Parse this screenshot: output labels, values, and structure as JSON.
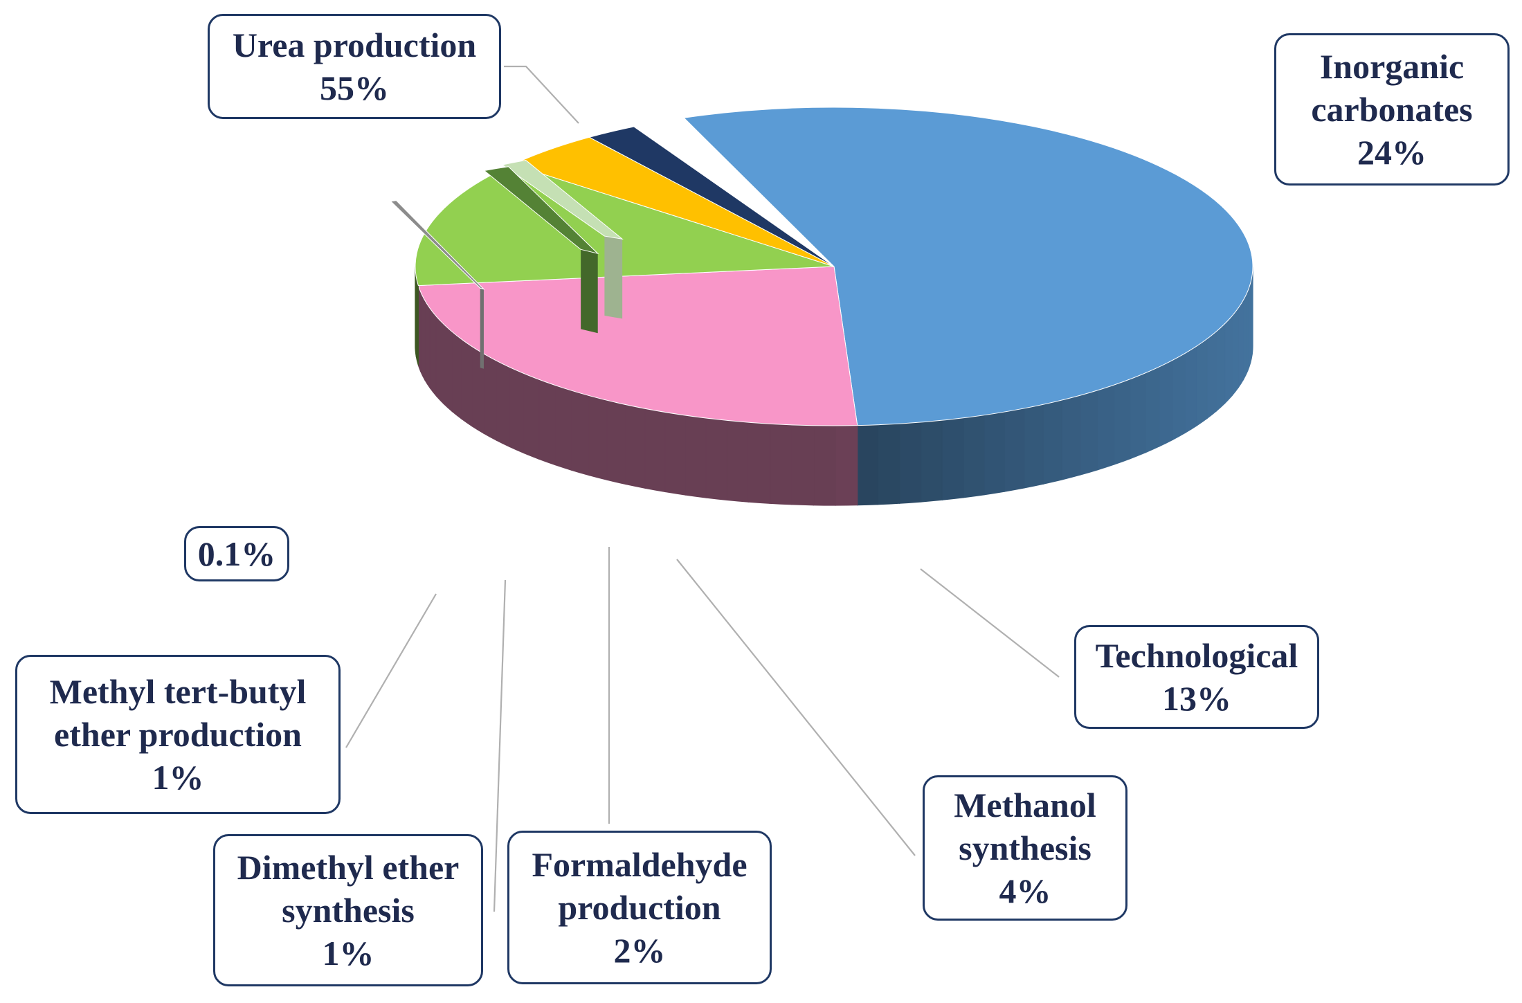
{
  "chart_data": {
    "type": "pie",
    "style": "3d-exploded",
    "slices": [
      {
        "label_lines": [
          "Urea production"
        ],
        "pct_text": "55%",
        "value": 55,
        "color": "#5b9bd5"
      },
      {
        "label_lines": [
          "Inorganic",
          "carbonates"
        ],
        "pct_text": "24%",
        "value": 24,
        "color": "#f896c8"
      },
      {
        "label_lines": [
          "Technological"
        ],
        "pct_text": "13%",
        "value": 13,
        "color": "#92d050"
      },
      {
        "label_lines": [
          "Methanol",
          "synthesis"
        ],
        "pct_text": "4%",
        "value": 4,
        "color": "#ffc000"
      },
      {
        "label_lines": [
          "Formaldehyde",
          "production"
        ],
        "pct_text": "2%",
        "value": 2,
        "color": "#1f3864"
      },
      {
        "label_lines": [
          "Dimethyl ether",
          "synthesis"
        ],
        "pct_text": "1%",
        "value": 1,
        "color": "#c5e0b4"
      },
      {
        "label_lines": [
          "Methyl tert-butyl",
          "ether production"
        ],
        "pct_text": "1%",
        "value": 1,
        "color": "#548235"
      },
      {
        "label_lines": [],
        "pct_text": "0.1%",
        "value": 0.1,
        "color": "#8c8c8c"
      }
    ]
  }
}
